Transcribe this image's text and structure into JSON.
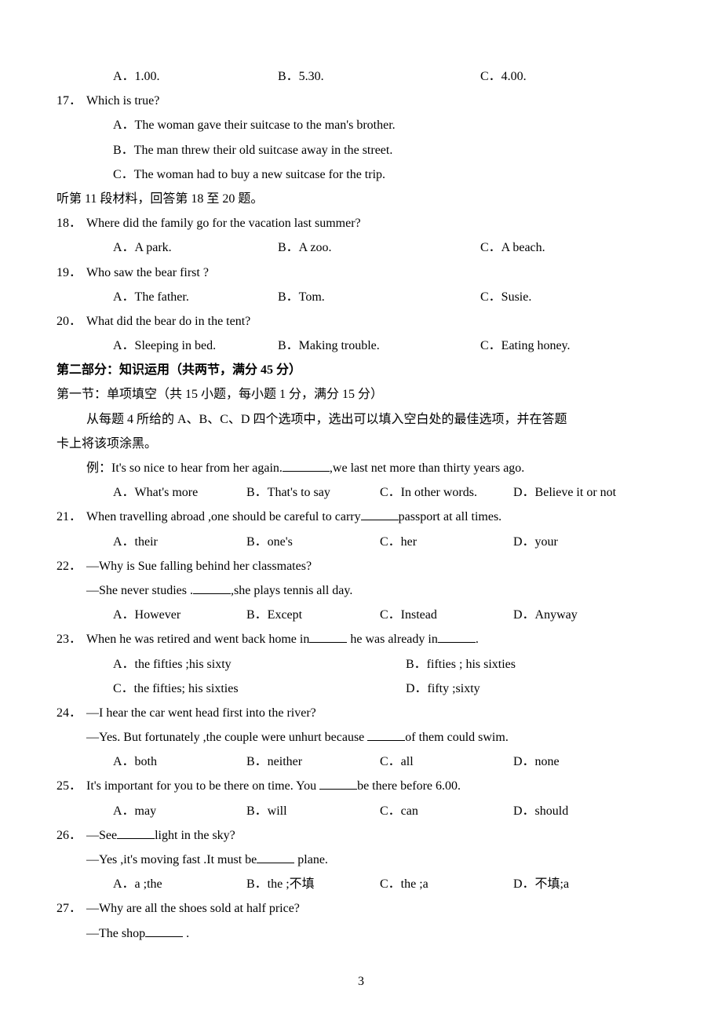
{
  "q16": {
    "a": "A．1.00.",
    "b": "B．5.30.",
    "c": "C．4.00."
  },
  "q17": {
    "num": "17．",
    "text": "Which is true?",
    "a": "A．The woman gave their suitcase to the man's brother.",
    "b": "B．The man threw their old suitcase away in the street.",
    "c": "C．The woman had to buy a new suitcase for the trip."
  },
  "listen11": "听第 11 段材料，回答第 18 至 20 题。",
  "q18": {
    "num": "18．",
    "text": "Where did the family go for the vacation last summer?",
    "a": "A．A park.",
    "b": "B．A zoo.",
    "c": "C．A beach."
  },
  "q19": {
    "num": "19．",
    "text": "Who saw the bear first ?",
    "a": "A．The father.",
    "b": "B．Tom.",
    "c": "C．Susie."
  },
  "q20": {
    "num": "20．",
    "text": "What did the bear do in the tent?",
    "a": "A．Sleeping in bed.",
    "b": "B．Making trouble.",
    "c": "C．Eating honey."
  },
  "section2_title": "第二部分：知识运用（共两节，满分 45 分）",
  "section2_sub": "第一节：单项填空（共 15 小题，每小题 1 分，满分 15 分）",
  "section2_instr1": "从每题 4 所给的 A、B、C、D 四个选项中，选出可以填入空白处的最佳选项，并在答题",
  "section2_instr2": "卡上将该项涂黑。",
  "example": {
    "pre": "例：It's so nice to hear from her again.",
    "post": ",we last net more than thirty years ago.",
    "a": "A．What's more",
    "b": "B．That's to say",
    "c": "C．In other words.",
    "d": "D．Believe it or not"
  },
  "q21": {
    "num": "21．",
    "pre": "When travelling abroad ,one should be careful to carry",
    "post": "passport at all times.",
    "a": "A．their",
    "b": "B．one's",
    "c": "C．her",
    "d": "D．your"
  },
  "q22": {
    "num": "22．",
    "l1": "—Why is Sue falling behind her classmates?",
    "l2a": "—She never studies .",
    "l2b": ",she plays tennis all day.",
    "a": "A．However",
    "b": "B．Except",
    "c": "C．Instead",
    "d": "D．Anyway"
  },
  "q23": {
    "num": "23．",
    "pre": "When he was retired and went back home in",
    "mid": " he was already in",
    "post": ".",
    "a": "A．the fifties ;his sixty",
    "b": "B．fifties ; his sixties",
    "c": "C．the fifties; his sixties",
    "d": "D．fifty ;sixty"
  },
  "q24": {
    "num": "24．",
    "l1": "—I hear the car went head first into the river?",
    "l2a": "—Yes. But fortunately ,the couple were unhurt because  ",
    "l2b": "of them could swim.",
    "a": "A．both",
    "b": "B．neither",
    "c": "C．all",
    "d": "D．none"
  },
  "q25": {
    "num": "25．",
    "pre": "It's important for you to be there on time. You  ",
    "post": "be there before 6.00.",
    "a": "A．may",
    "b": "B．will",
    "c": "C．can",
    "d": "D．should"
  },
  "q26": {
    "num": "26．",
    "l1a": "—See",
    "l1b": "light in the sky?",
    "l2a": "—Yes ,it's moving fast .It must be",
    "l2b": " plane.",
    "a": "A．a ;the",
    "b": "B．the ;不填",
    "c": "C．the ;a",
    "d": "D．不填;a"
  },
  "q27": {
    "num": "27．",
    "l1": "—Why are all the shoes sold at half price?",
    "l2a": "—The shop",
    "l2b": " .",
    "a": "",
    "b": "",
    "c": "",
    "d": ""
  },
  "page_num": "3"
}
